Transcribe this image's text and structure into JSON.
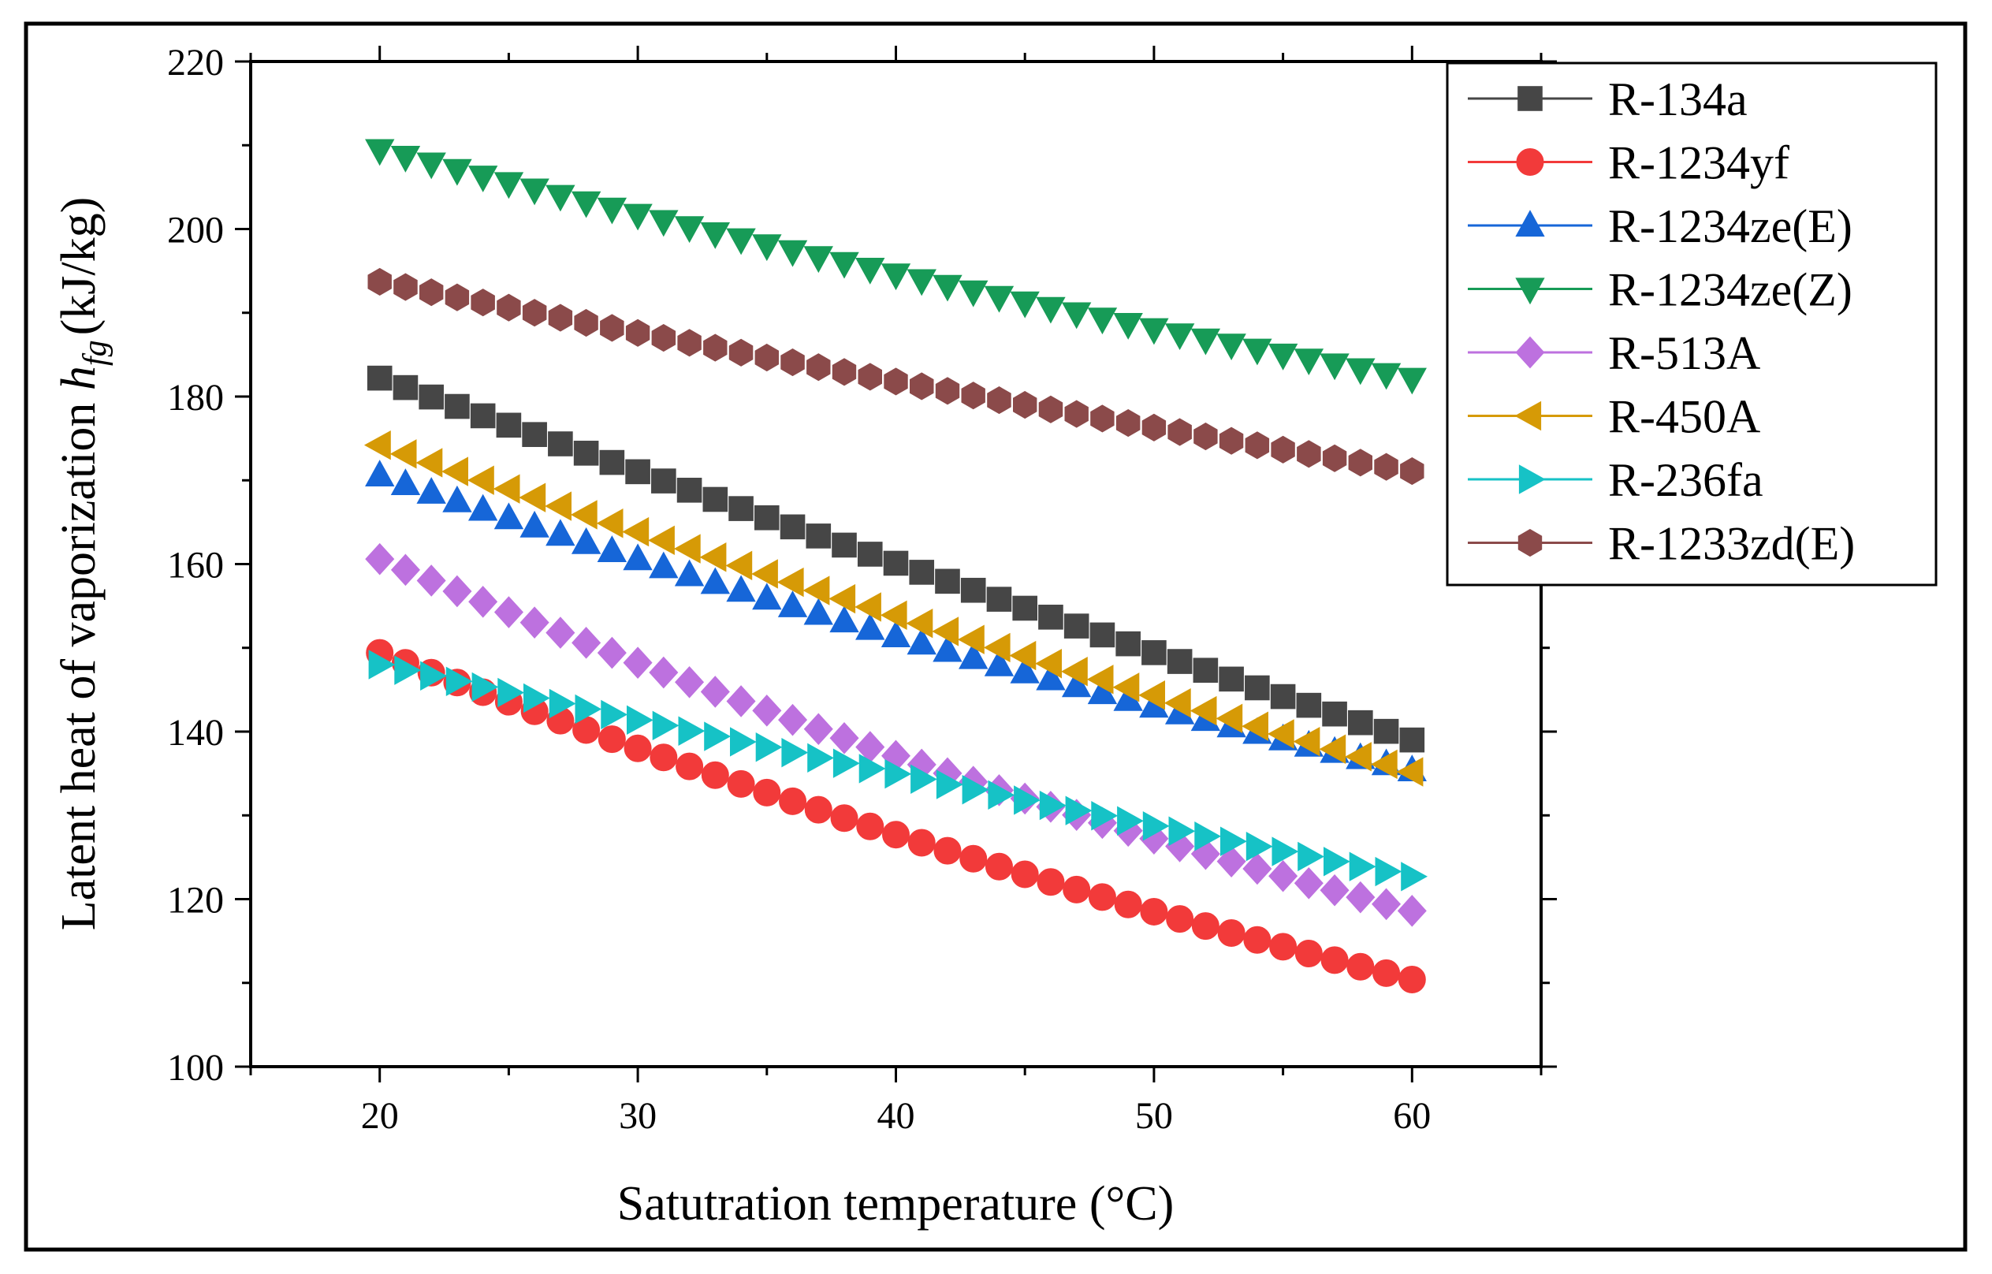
{
  "chart_data": {
    "type": "scatter",
    "xlabel": "Satutration temperature (°C)",
    "ylabel": {
      "main": "Latent heat of vaporization ",
      "symbol": "h",
      "subscript": "fg",
      "unit": "(kJ/kg)"
    },
    "xlim": [
      15,
      65
    ],
    "ylim": [
      100,
      220
    ],
    "xticks": [
      20,
      30,
      40,
      50,
      60
    ],
    "yticks": [
      100,
      120,
      140,
      160,
      180,
      200,
      220
    ],
    "legend_position": "top-right",
    "x": [
      20,
      21,
      22,
      23,
      24,
      25,
      26,
      27,
      28,
      29,
      30,
      31,
      32,
      33,
      34,
      35,
      36,
      37,
      38,
      39,
      40,
      41,
      42,
      43,
      44,
      45,
      46,
      47,
      48,
      49,
      50,
      51,
      52,
      53,
      54,
      55,
      56,
      57,
      58,
      59,
      60
    ],
    "series": [
      {
        "name": "R-134a",
        "marker": "square",
        "color": "#464646",
        "start": 182.2,
        "end": 139.0,
        "curve": 0.5
      },
      {
        "name": "R-1234yf",
        "marker": "circle",
        "color": "#f23a3a",
        "start": 149.4,
        "end": 110.4,
        "curve": 2.2
      },
      {
        "name": "R-1234ze(E)",
        "marker": "triangle-up",
        "color": "#1666d8",
        "start": 170.6,
        "end": 135.4,
        "curve": 1.6
      },
      {
        "name": "R-1234ze(Z)",
        "marker": "triangle-down",
        "color": "#179b57",
        "start": 209.4,
        "end": 182.1,
        "curve": 1.2
      },
      {
        "name": "R-513A",
        "marker": "diamond",
        "color": "#bd71df",
        "start": 160.6,
        "end": 118.6,
        "curve": 2.5
      },
      {
        "name": "R-450A",
        "marker": "triangle-left",
        "color": "#d69a06",
        "start": 174.2,
        "end": 135.2,
        "curve": 0.8
      },
      {
        "name": "R-236fa",
        "marker": "triangle-right",
        "color": "#16c2c6",
        "start": 148.0,
        "end": 122.7,
        "curve": 0.4
      },
      {
        "name": "R-1233zd(E)",
        "marker": "hexagon",
        "color": "#8b4a4a",
        "start": 193.7,
        "end": 171.1,
        "curve": 0.6
      }
    ]
  }
}
